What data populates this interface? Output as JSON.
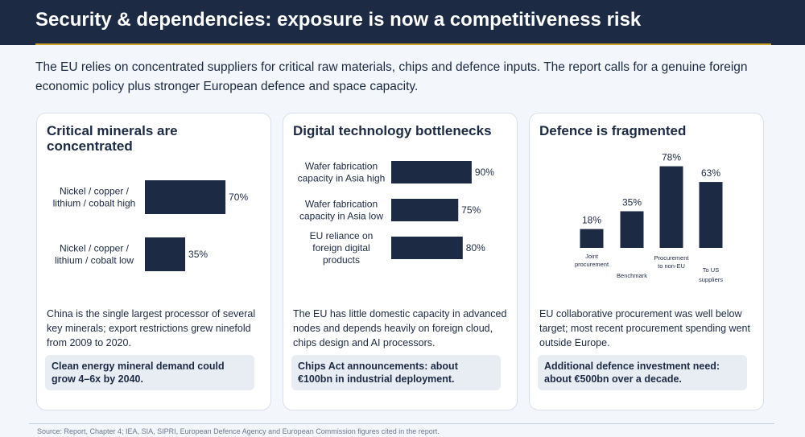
{
  "header": {
    "title": "Security & dependencies: exposure is now a competitiveness risk"
  },
  "intro": "The EU relies on concentrated suppliers for critical raw materials, chips and defence inputs. The report calls for a genuine foreign economic policy plus stronger European defence and space capacity.",
  "colors": {
    "bar": "#1c2a44",
    "header": "#1c2a44",
    "accent_rule": "#c9a227",
    "callout_bg": "#e8edf4"
  },
  "cards": [
    {
      "title": "Critical minerals are concentrated",
      "description": "China is the single largest processor of several key minerals; export restrictions grew ninefold from 2009 to 2020.",
      "callout": "Clean energy mineral demand could grow 4–6x by 2040."
    },
    {
      "title": "Digital technology bottlenecks",
      "description": "The EU has little domestic capacity in advanced nodes and depends heavily on foreign cloud, chips design and AI processors.",
      "callout": "Chips Act announcements: about €100bn in industrial deployment."
    },
    {
      "title": "Defence is fragmented",
      "description": "EU collaborative procurement was well below target; most recent procurement spending went outside Europe.",
      "callout": "Additional defence investment need: about €500bn over a decade."
    }
  ],
  "chart_data": [
    {
      "type": "bar",
      "orientation": "horizontal",
      "categories": [
        [
          "Nickel / copper /",
          "lithium / cobalt high"
        ],
        [
          "Nickel / copper /",
          "lithium / cobalt low"
        ]
      ],
      "values": [
        70,
        35
      ],
      "value_labels": [
        "70%",
        "35%"
      ],
      "xlim": [
        0,
        100
      ],
      "grid": false
    },
    {
      "type": "bar",
      "orientation": "horizontal",
      "categories": [
        [
          "Wafer fabrication",
          "capacity in Asia high"
        ],
        [
          "Wafer fabrication",
          "capacity in Asia low"
        ],
        [
          "EU reliance on",
          "foreign digital",
          "products"
        ]
      ],
      "values": [
        90,
        75,
        80
      ],
      "value_labels": [
        "90%",
        "75%",
        "80%"
      ],
      "xlim": [
        0,
        100
      ],
      "grid": false
    },
    {
      "type": "bar",
      "orientation": "vertical",
      "categories": [
        [
          "Joint",
          "procurement"
        ],
        [
          "Benchmark"
        ],
        [
          "Procurement",
          "to non-EU"
        ],
        [
          "To US",
          "suppliers"
        ]
      ],
      "values": [
        18,
        35,
        78,
        63
      ],
      "value_labels": [
        "18%",
        "35%",
        "78%",
        "63%"
      ],
      "ylim": [
        0,
        100
      ],
      "grid": false
    }
  ],
  "footer": {
    "source": "Source: Report, Chapter 4; IEA, SIA, SIPRI, European Defence Agency and European Commission figures cited in the report."
  }
}
